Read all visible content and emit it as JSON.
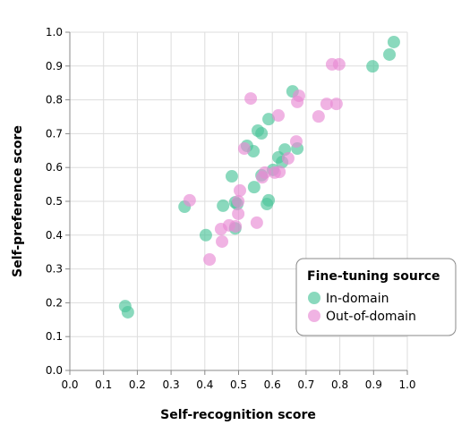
{
  "chart_data": {
    "type": "scatter",
    "xlabel": "Self-recognition score",
    "ylabel": "Self-preference score",
    "xlim": [
      0,
      1
    ],
    "ylim": [
      0,
      1
    ],
    "xticks": [
      {
        "value": 0,
        "label": "0.0"
      },
      0.1,
      0.2,
      0.3,
      0.4,
      0.5,
      0.6,
      0.7,
      0.8,
      0.9,
      {
        "value": 1,
        "label": "1.0"
      }
    ],
    "yticks": [
      {
        "value": 0,
        "label": "0.0"
      },
      0.1,
      0.2,
      0.3,
      0.4,
      0.5,
      0.6,
      0.7,
      0.8,
      0.9,
      {
        "value": 1,
        "label": "1.0"
      }
    ],
    "grid": true,
    "legend_title": "Fine-tuning source",
    "legend_position": "lower right",
    "series": [
      {
        "name": "In-domain",
        "color": "#4cc49a",
        "x": [
          0.164,
          0.172,
          0.34,
          0.403,
          0.454,
          0.48,
          0.49,
          0.496,
          0.49,
          0.525,
          0.544,
          0.546,
          0.557,
          0.568,
          0.568,
          0.584,
          0.589,
          0.589,
          0.602,
          0.618,
          0.629,
          0.637,
          0.66,
          0.674,
          0.897,
          0.947,
          0.96
        ],
        "y": [
          0.19,
          0.172,
          0.484,
          0.4,
          0.487,
          0.574,
          0.42,
          0.492,
          0.497,
          0.664,
          0.648,
          0.542,
          0.709,
          0.701,
          0.577,
          0.492,
          0.503,
          0.743,
          0.593,
          0.63,
          0.616,
          0.653,
          0.825,
          0.656,
          0.899,
          0.934,
          0.971
        ]
      },
      {
        "name": "Out-of-domain",
        "color": "#e88bd4",
        "x": [
          0.355,
          0.414,
          0.448,
          0.451,
          0.472,
          0.491,
          0.499,
          0.499,
          0.504,
          0.517,
          0.536,
          0.554,
          0.57,
          0.578,
          0.607,
          0.621,
          0.618,
          0.647,
          0.671,
          0.674,
          0.679,
          0.737,
          0.761,
          0.777,
          0.79,
          0.798
        ],
        "y": [
          0.503,
          0.328,
          0.418,
          0.381,
          0.429,
          0.426,
          0.5,
          0.463,
          0.532,
          0.656,
          0.804,
          0.437,
          0.571,
          0.585,
          0.585,
          0.587,
          0.754,
          0.627,
          0.677,
          0.794,
          0.812,
          0.751,
          0.788,
          0.905,
          0.788,
          0.905
        ]
      }
    ]
  }
}
